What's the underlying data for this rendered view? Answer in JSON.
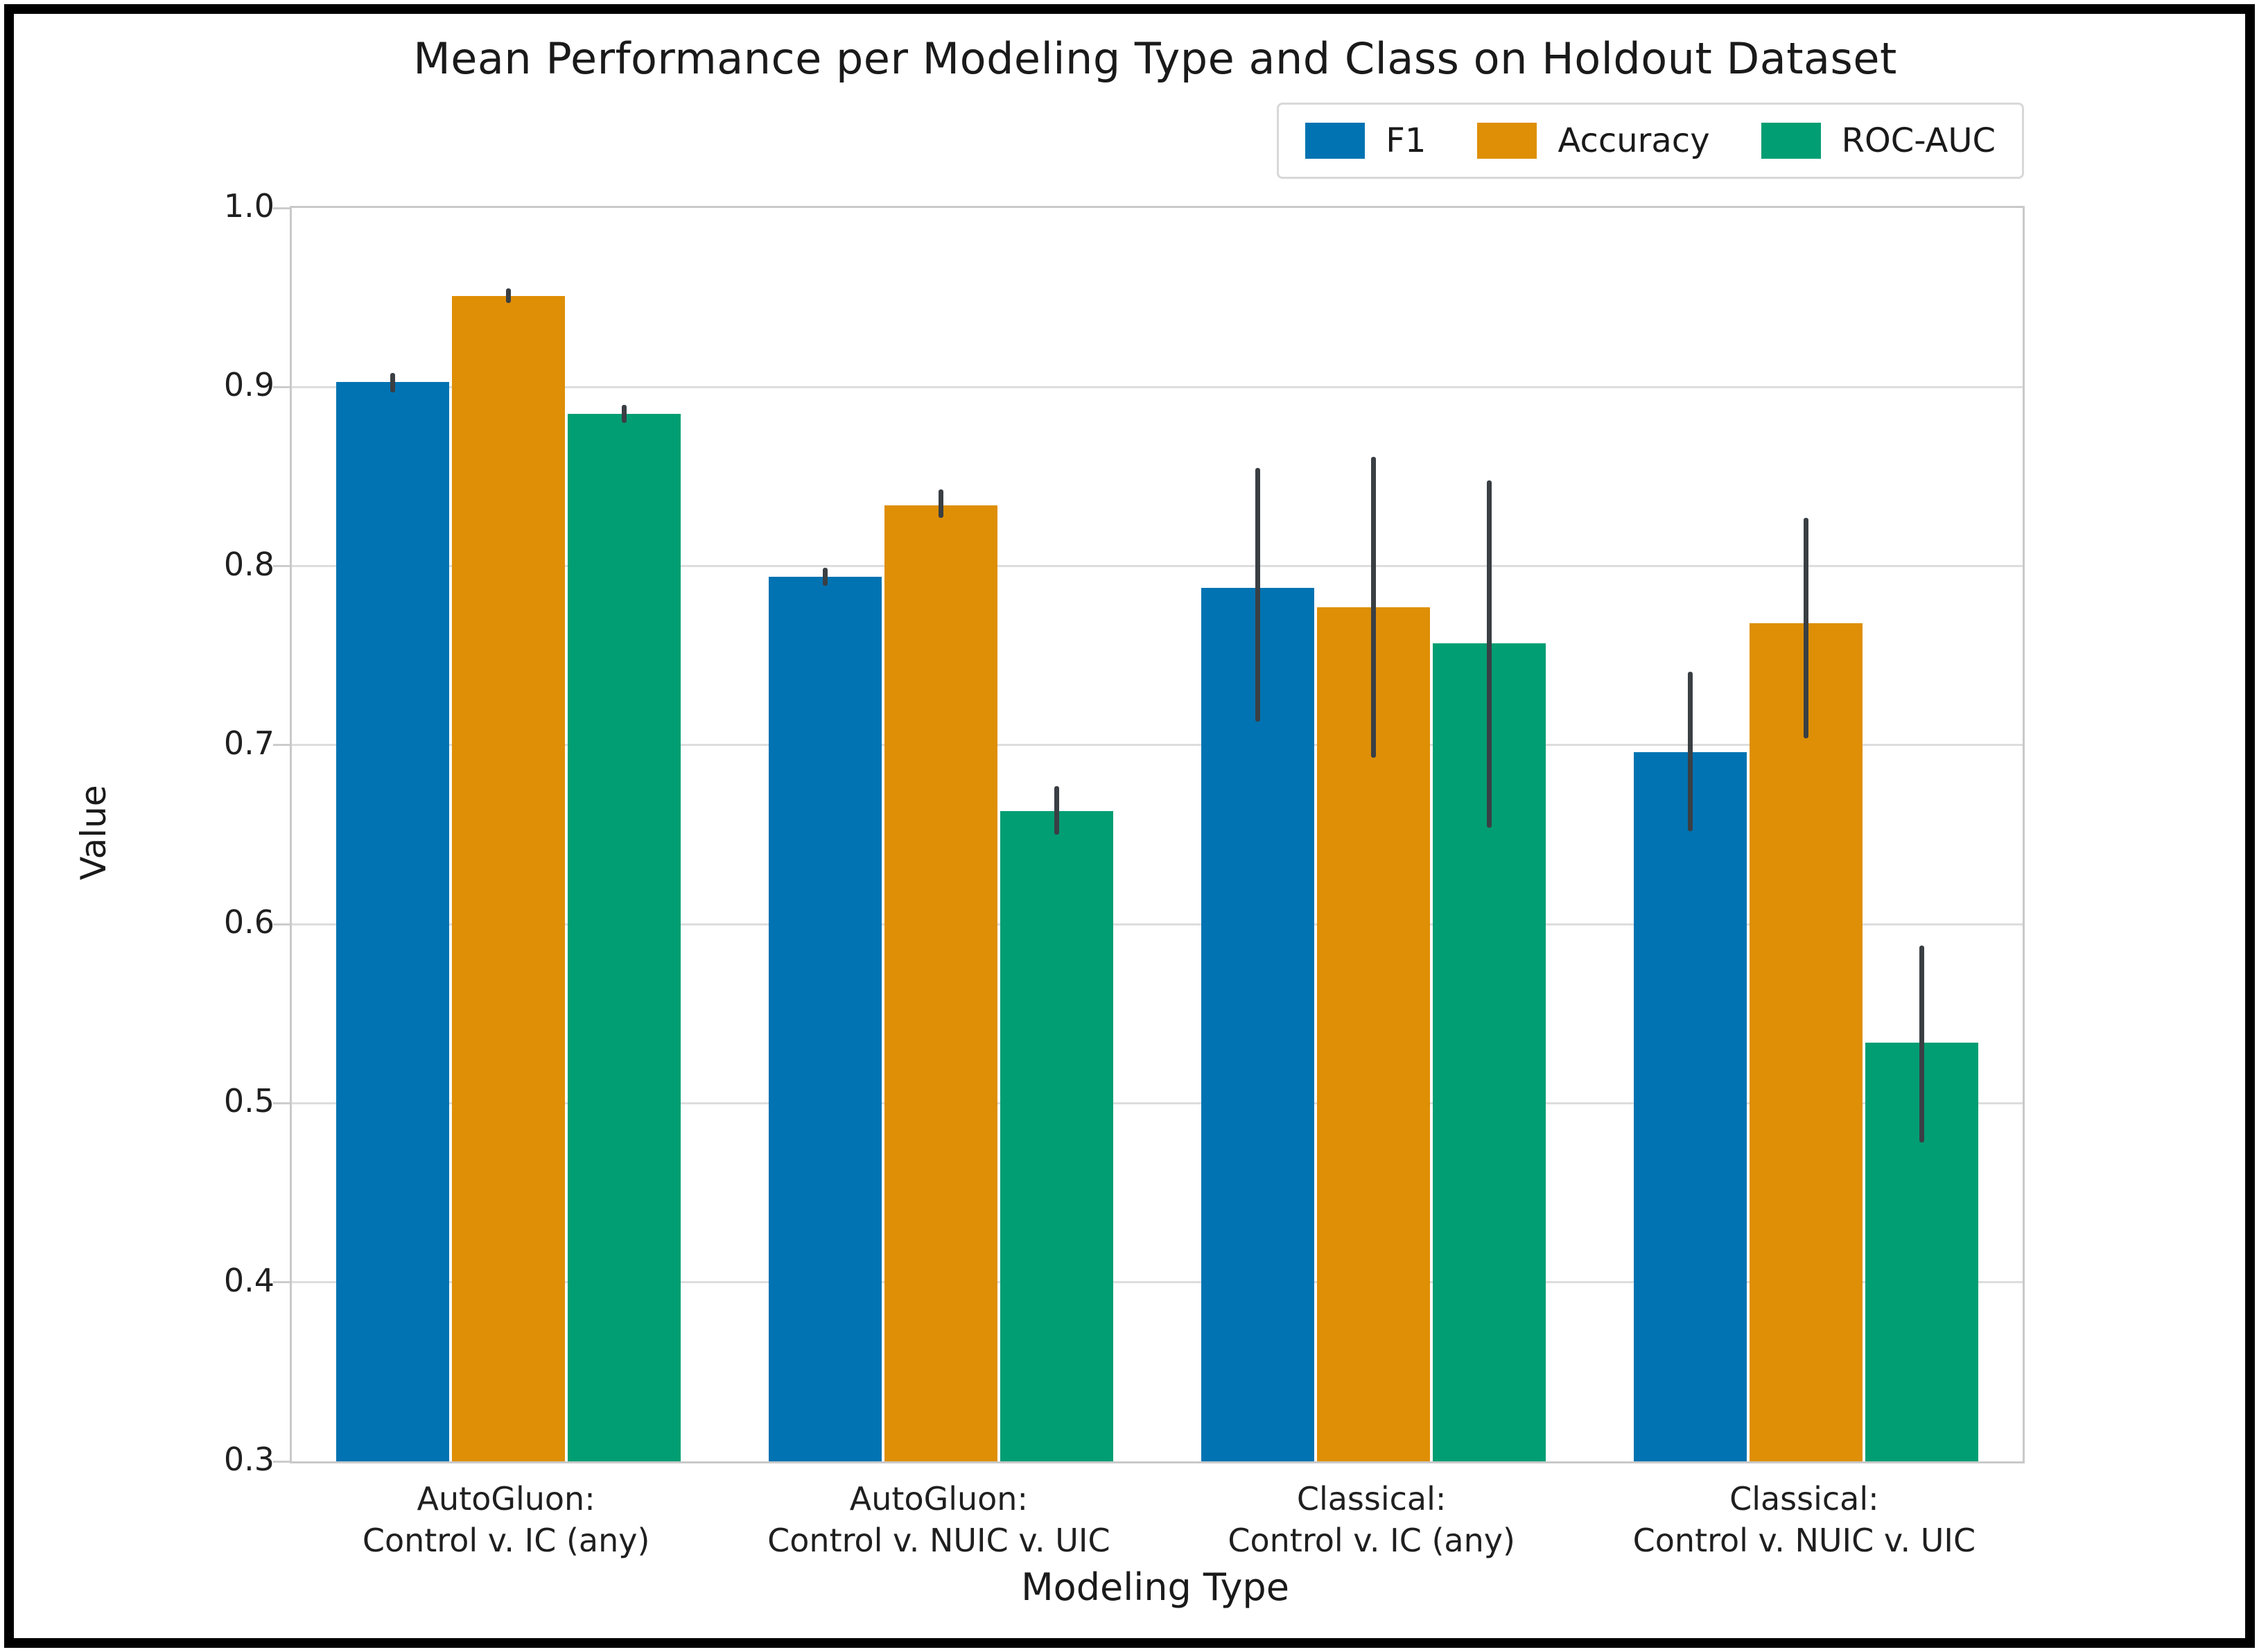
{
  "chart_data": {
    "type": "bar",
    "title": "Mean Performance per Modeling Type and Class on Holdout Dataset",
    "xlabel": "Modeling Type",
    "ylabel": "Value",
    "ylim": [
      0.3,
      1.0
    ],
    "yticks": [
      1.0,
      0.9,
      0.8,
      0.7,
      0.6,
      0.5,
      0.4,
      0.3
    ],
    "grid": "horizontal",
    "legend_position": "upper-right-inside",
    "categories": [
      "AutoGluon:\nControl v. IC (any)",
      "AutoGluon:\nControl v. NUIC v. UIC",
      "Classical:\nControl v. IC (any)",
      "Classical:\nControl v. NUIC v. UIC"
    ],
    "series": [
      {
        "name": "F1",
        "color": "#0173b2",
        "values": [
          0.903,
          0.794,
          0.788,
          0.696
        ],
        "error_intervals": [
          [
            0.897,
            0.908
          ],
          [
            0.789,
            0.799
          ],
          [
            0.713,
            0.855
          ],
          [
            0.652,
            0.741
          ]
        ]
      },
      {
        "name": "Accuracy",
        "color": "#de8f05",
        "values": [
          0.951,
          0.834,
          0.777,
          0.768
        ],
        "error_intervals": [
          [
            0.947,
            0.955
          ],
          [
            0.827,
            0.843
          ],
          [
            0.693,
            0.861
          ],
          [
            0.704,
            0.827
          ]
        ]
      },
      {
        "name": "ROC-AUC",
        "color": "#029e73",
        "values": [
          0.885,
          0.663,
          0.757,
          0.534
        ],
        "error_intervals": [
          [
            0.88,
            0.89
          ],
          [
            0.65,
            0.677
          ],
          [
            0.654,
            0.848
          ],
          [
            0.478,
            0.588
          ]
        ]
      }
    ],
    "error_bar_color": "#3a3f44",
    "gridline_color": "#dddddd",
    "spine_color": "#c9c9c9",
    "text_color": "#1a1a1a",
    "background_color": "#ffffff",
    "frame_border_color": "#000000"
  }
}
